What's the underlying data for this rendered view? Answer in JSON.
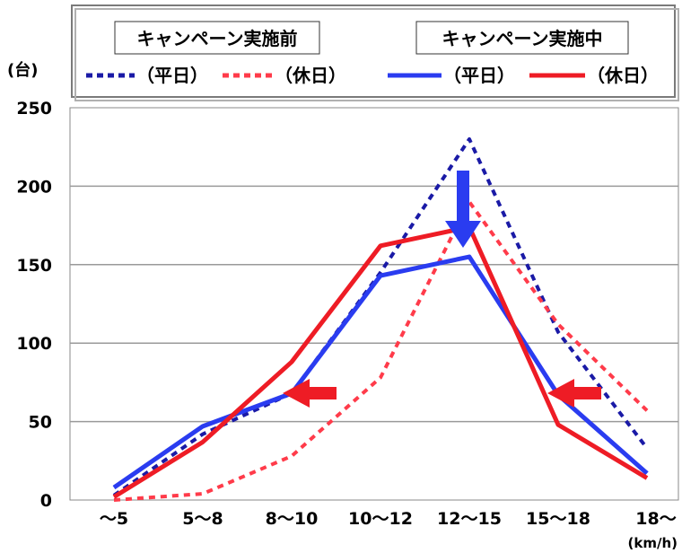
{
  "chart_data": {
    "type": "line",
    "categories": [
      "～5",
      "5～8",
      "8～10",
      "10～12",
      "12～15",
      "15～18",
      "18～"
    ],
    "x_unit": "(km/h)",
    "y_unit": "(台)",
    "ylim": [
      0,
      250
    ],
    "yticks": [
      0,
      50,
      100,
      150,
      200,
      250
    ],
    "grid": true,
    "legend_placement": "top",
    "legend_groups": [
      {
        "title": "キャンペーン実施前",
        "line_style": "dotted"
      },
      {
        "title": "キャンペーン実施中",
        "line_style": "solid"
      }
    ],
    "series": [
      {
        "name": "（平日）",
        "group": "キャンペーン実施前",
        "color": "#1a1aa6",
        "style": "dotted",
        "values": [
          3,
          42,
          68,
          145,
          230,
          107,
          33
        ]
      },
      {
        "name": "（休日）",
        "group": "キャンペーン実施前",
        "color": "#ff3b4a",
        "style": "dotted",
        "values": [
          0,
          4,
          28,
          78,
          190,
          112,
          57
        ]
      },
      {
        "name": "（平日）",
        "group": "キャンペーン実施中",
        "color": "#2a3cf0",
        "style": "solid",
        "values": [
          8,
          47,
          68,
          143,
          155,
          67,
          17
        ]
      },
      {
        "name": "（休日）",
        "group": "キャンペーン実施中",
        "color": "#ee1c25",
        "style": "solid",
        "values": [
          2,
          37,
          88,
          162,
          174,
          48,
          14
        ]
      }
    ],
    "annotations": [
      {
        "type": "arrow",
        "direction": "down",
        "color": "#2a3cf0",
        "near_category": "12～15"
      },
      {
        "type": "arrow",
        "direction": "left",
        "color": "#ee1c25",
        "near_category": "8～10"
      },
      {
        "type": "arrow",
        "direction": "left",
        "color": "#ee1c25",
        "near_category": "15～18"
      }
    ]
  }
}
